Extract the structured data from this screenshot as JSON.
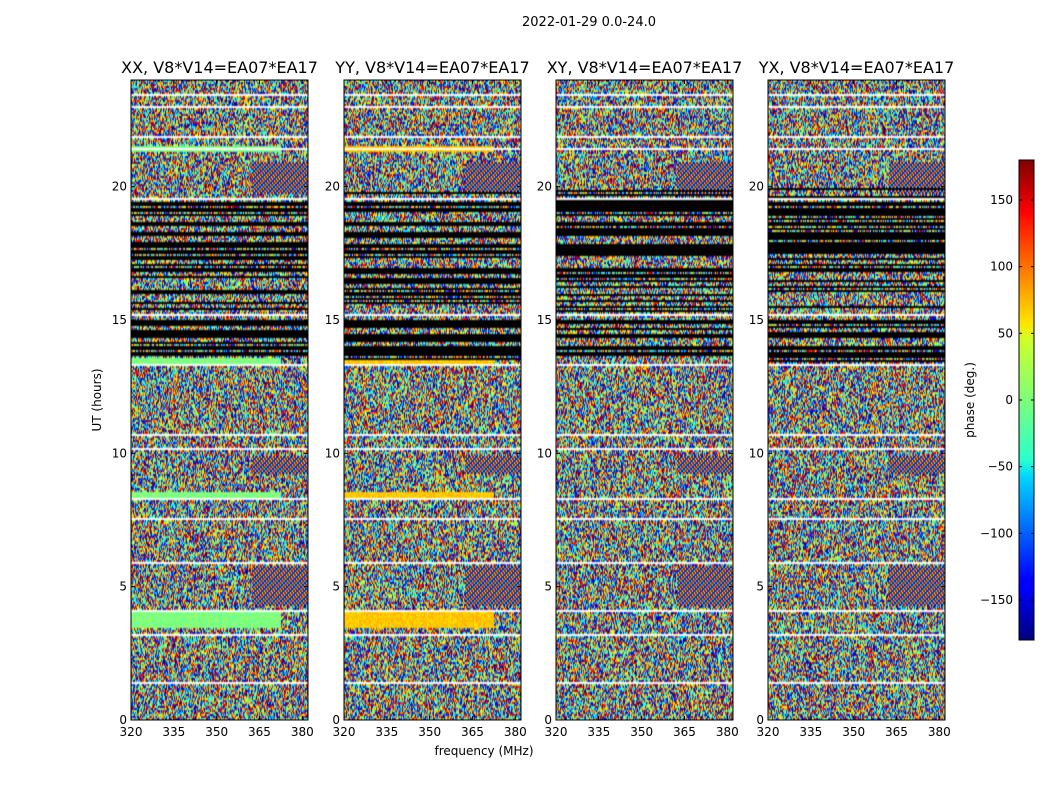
{
  "chart_data": {
    "type": "heatmap",
    "suptitle": "2022-01-29 0.0-24.0",
    "xlabel": "frequency (MHz)",
    "ylabel": "UT (hours)",
    "xlim": [
      320,
      382
    ],
    "ylim": [
      0,
      24
    ],
    "xticks": [
      320,
      335,
      350,
      365,
      380
    ],
    "yticks": [
      0,
      5,
      10,
      15,
      20
    ],
    "colorbar": {
      "label": "phase (deg.)",
      "range": [
        -180,
        180
      ],
      "ticks": [
        150,
        100,
        50,
        0,
        -50,
        -100,
        -150
      ],
      "colormap": "jet"
    },
    "panels": [
      {
        "title": "XX, V8*V14=EA07*EA17",
        "coherent_hue": "green"
      },
      {
        "title": "YY, V8*V14=EA07*EA17",
        "coherent_hue": "orange"
      },
      {
        "title": "XY, V8*V14=EA07*EA17",
        "coherent_hue": "noise"
      },
      {
        "title": "YX, V8*V14=EA07*EA17",
        "coherent_hue": "noise"
      }
    ],
    "flagged_white_rows_hours": [
      1.45,
      3.25,
      4.15,
      5.9,
      7.55,
      8.3,
      10.2,
      10.75,
      13.35,
      15.25,
      19.55,
      21.45,
      21.9,
      23.0,
      23.5
    ],
    "dark_band_rows_hours": [
      13.7,
      13.95,
      14.4,
      14.9,
      16.9,
      17.55,
      17.75,
      18.2,
      18.6,
      19.1,
      19.35
    ]
  }
}
